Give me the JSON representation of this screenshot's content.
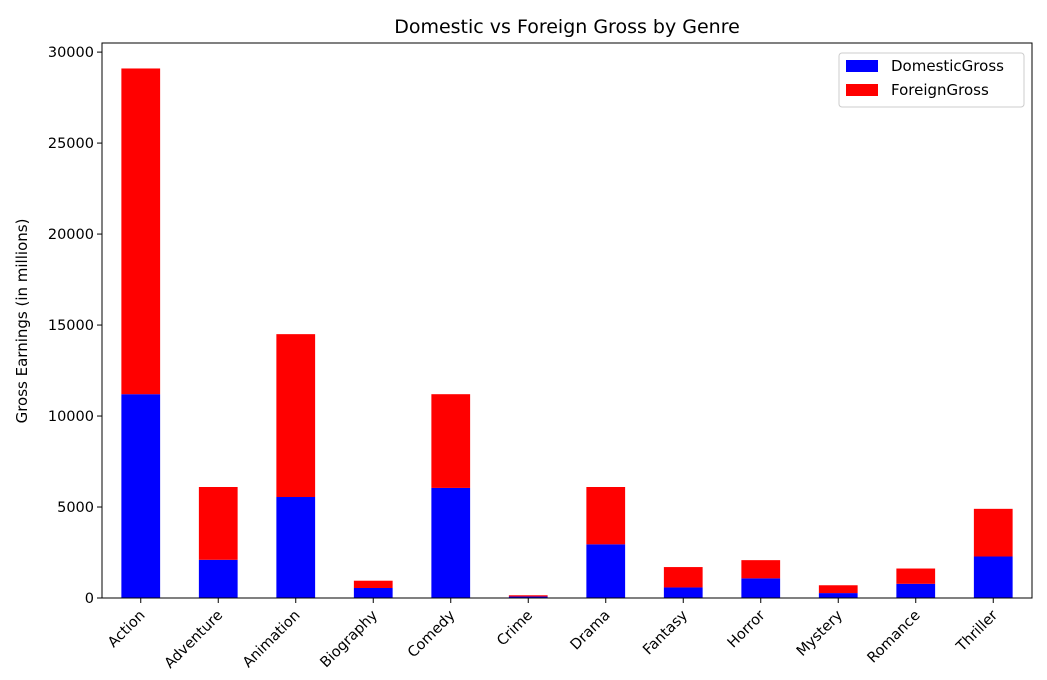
{
  "chart_data": {
    "type": "bar",
    "stacked": true,
    "title": "Domestic vs Foreign Gross by Genre",
    "xlabel": "",
    "ylabel": "Gross Earnings (in millions)",
    "categories": [
      "Action",
      "Adventure",
      "Animation",
      "Biography",
      "Comedy",
      "Crime",
      "Drama",
      "Fantasy",
      "Horror",
      "Mystery",
      "Romance",
      "Thriller"
    ],
    "series": [
      {
        "name": "DomesticGross",
        "color": "#0000ff",
        "values": [
          11200,
          2100,
          5550,
          550,
          6050,
          80,
          2950,
          580,
          1080,
          270,
          780,
          2280
        ]
      },
      {
        "name": "ForeignGross",
        "color": "#ff0000",
        "values": [
          17900,
          4000,
          8950,
          400,
          5150,
          70,
          3150,
          1120,
          1000,
          430,
          840,
          2620
        ]
      }
    ],
    "ylim": [
      0,
      30500
    ],
    "yticks": [
      0,
      5000,
      10000,
      15000,
      20000,
      25000,
      30000
    ],
    "legend_position": "top-right",
    "grid": false
  }
}
